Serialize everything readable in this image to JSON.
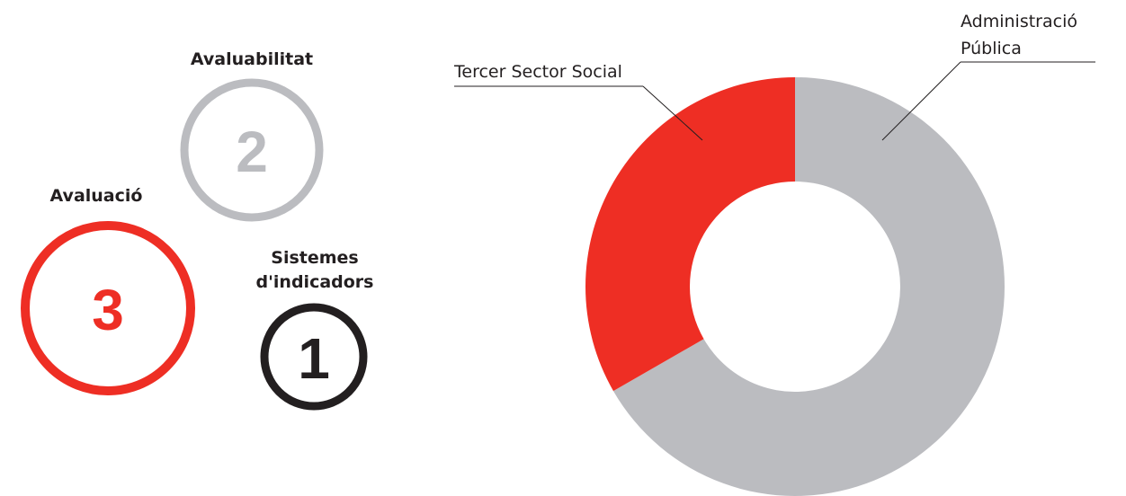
{
  "circles": [
    {
      "title_lines": [
        "Avaluabilitat"
      ],
      "count": "2",
      "color": "#bbbcc0"
    },
    {
      "title_lines": [
        "Avaluació"
      ],
      "count": "3",
      "color": "#ee2e24"
    },
    {
      "title_lines": [
        "Sistemes",
        "d'indicadors"
      ],
      "count": "1",
      "color": "#231f20"
    }
  ],
  "chart_data": {
    "type": "pie",
    "donut": true,
    "labels": [
      "Administració Pública",
      "Tercer Sector Social"
    ],
    "label_lines": [
      [
        "Administració",
        "Pública"
      ],
      [
        "Tercer Sector Social"
      ]
    ],
    "values": [
      66.7,
      33.3
    ],
    "colors": [
      "#bbbcc0",
      "#ee2e24"
    ]
  }
}
